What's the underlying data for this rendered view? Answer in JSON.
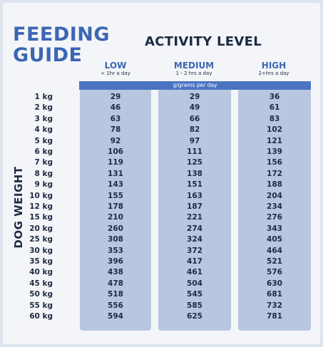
{
  "title": "FEEDING\nGUIDE",
  "activity_heading": "ACTIVITY LEVEL",
  "side_label": "DOG WEIGHT",
  "unit_label": "g/grams per day",
  "columns": [
    {
      "level": "LOW",
      "desc": "< 1hr a day"
    },
    {
      "level": "MEDIUM",
      "desc": "1 - 2 hrs a day"
    },
    {
      "level": "HIGH",
      "desc": "2+hrs a day"
    }
  ],
  "rows": [
    {
      "weight": "1 kg",
      "low": "29",
      "medium": "29",
      "high": "36"
    },
    {
      "weight": "2 kg",
      "low": "46",
      "medium": "49",
      "high": "61"
    },
    {
      "weight": "3 kg",
      "low": "63",
      "medium": "66",
      "high": "83"
    },
    {
      "weight": "4 kg",
      "low": "78",
      "medium": "82",
      "high": "102"
    },
    {
      "weight": "5 kg",
      "low": "92",
      "medium": "97",
      "high": "121"
    },
    {
      "weight": "6 kg",
      "low": "106",
      "medium": "111",
      "high": "139"
    },
    {
      "weight": "7 kg",
      "low": "119",
      "medium": "125",
      "high": "156"
    },
    {
      "weight": "8 kg",
      "low": "131",
      "medium": "138",
      "high": "172"
    },
    {
      "weight": "9 kg",
      "low": "143",
      "medium": "151",
      "high": "188"
    },
    {
      "weight": "10 kg",
      "low": "155",
      "medium": "163",
      "high": "204"
    },
    {
      "weight": "12 kg",
      "low": "178",
      "medium": "187",
      "high": "234"
    },
    {
      "weight": "15 kg",
      "low": "210",
      "medium": "221",
      "high": "276"
    },
    {
      "weight": "20 kg",
      "low": "260",
      "medium": "274",
      "high": "343"
    },
    {
      "weight": "25 kg",
      "low": "308",
      "medium": "324",
      "high": "405"
    },
    {
      "weight": "30 kg",
      "low": "353",
      "medium": "372",
      "high": "464"
    },
    {
      "weight": "35 kg",
      "low": "396",
      "medium": "417",
      "high": "521"
    },
    {
      "weight": "40 kg",
      "low": "438",
      "medium": "461",
      "high": "576"
    },
    {
      "weight": "45 kg",
      "low": "478",
      "medium": "504",
      "high": "630"
    },
    {
      "weight": "50 kg",
      "low": "518",
      "medium": "545",
      "high": "681"
    },
    {
      "weight": "55 kg",
      "low": "556",
      "medium": "585",
      "high": "732"
    },
    {
      "weight": "60 kg",
      "low": "594",
      "medium": "625",
      "high": "781"
    }
  ],
  "colors": {
    "title": "#3c66b4",
    "header_bar": "#4a74c2",
    "column_fill": "#b8c6e0",
    "text": "#1d2a44"
  }
}
